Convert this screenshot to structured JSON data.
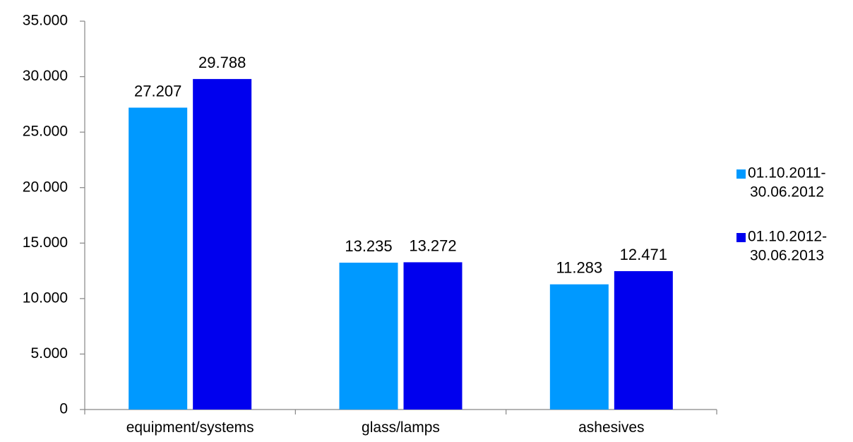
{
  "chart_data": {
    "type": "bar",
    "title": "",
    "xlabel": "",
    "ylabel": "",
    "categories": [
      "equipment/systems",
      "glass/lamps",
      "ashesives"
    ],
    "series": [
      {
        "name": "01.10.2011-30.06.2012",
        "legend_lines": [
          "01.10.2011-",
          "30.06.2012"
        ],
        "color": "#0099ff",
        "values": [
          27207,
          13235,
          11283
        ],
        "labels": [
          "27.207",
          "13.235",
          "11.283"
        ]
      },
      {
        "name": "01.10.2012-30.06.2013",
        "legend_lines": [
          "01.10.2012-",
          "30.06.2013"
        ],
        "color": "#0000ee",
        "values": [
          29788,
          13272,
          12471
        ],
        "labels": [
          "29.788",
          "13.272",
          "12.471"
        ]
      }
    ],
    "ylim": [
      0,
      35000
    ],
    "yticks": [
      0,
      5000,
      10000,
      15000,
      20000,
      25000,
      30000,
      35000
    ],
    "ytick_labels": [
      "0",
      "5.000",
      "10.000",
      "15.000",
      "20.000",
      "25.000",
      "30.000",
      "35.000"
    ],
    "grid": false,
    "legend_position": "right"
  }
}
